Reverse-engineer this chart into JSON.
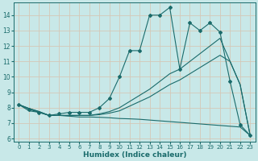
{
  "xlabel": "Humidex (Indice chaleur)",
  "bg_color": "#c8e8e8",
  "grid_color": "#d4c8b8",
  "line_color": "#1a6b6b",
  "x": [
    0,
    1,
    2,
    3,
    4,
    5,
    6,
    7,
    8,
    9,
    10,
    11,
    12,
    13,
    14,
    15,
    16,
    17,
    18,
    19,
    20,
    21,
    22,
    23
  ],
  "line_jagged": [
    8.2,
    7.9,
    7.7,
    7.5,
    7.6,
    7.7,
    7.7,
    7.7,
    8.0,
    8.6,
    10.0,
    11.7,
    11.7,
    14.0,
    14.0,
    14.5,
    10.5,
    13.5,
    13.0,
    13.5,
    12.9,
    9.7,
    6.9,
    6.2
  ],
  "line_trend1": [
    8.2,
    7.95,
    7.75,
    7.5,
    7.5,
    7.5,
    7.5,
    7.5,
    7.55,
    7.65,
    7.8,
    8.1,
    8.4,
    8.7,
    9.1,
    9.5,
    9.8,
    10.2,
    10.6,
    11.0,
    11.4,
    11.0,
    9.5,
    6.2
  ],
  "line_trend2": [
    8.2,
    7.95,
    7.75,
    7.5,
    7.5,
    7.5,
    7.5,
    7.5,
    7.6,
    7.75,
    8.0,
    8.4,
    8.8,
    9.2,
    9.7,
    10.2,
    10.5,
    11.0,
    11.5,
    12.0,
    12.5,
    11.0,
    9.5,
    6.2
  ],
  "line_decreasing": [
    8.2,
    7.8,
    7.7,
    7.5,
    7.5,
    7.45,
    7.4,
    7.4,
    7.38,
    7.35,
    7.3,
    7.28,
    7.25,
    7.2,
    7.15,
    7.1,
    7.05,
    7.0,
    6.95,
    6.9,
    6.85,
    6.8,
    6.75,
    6.2
  ],
  "yticks": [
    6,
    7,
    8,
    9,
    10,
    11,
    12,
    13,
    14
  ],
  "ylim": [
    5.8,
    14.8
  ],
  "xlim": [
    -0.5,
    23.5
  ]
}
